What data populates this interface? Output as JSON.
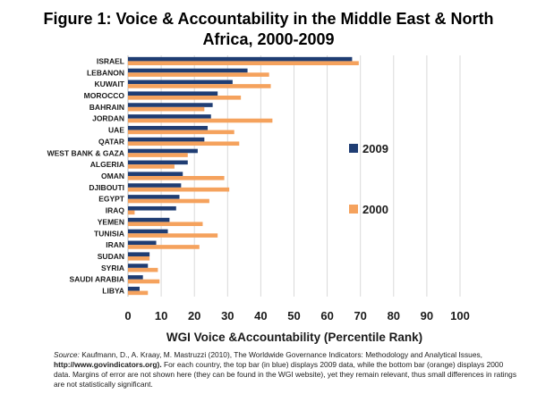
{
  "chart_data": {
    "type": "bar",
    "orientation": "horizontal",
    "title_line1": "Figure 1: Voice & Accountability in the Middle East & North",
    "title_line2": "Africa, 2000-2009",
    "xlabel": "WGI Voice &Accountability (Percentile Rank)",
    "ylabel": "",
    "xlim": [
      0,
      100
    ],
    "xticks": [
      0,
      10,
      20,
      30,
      40,
      50,
      60,
      70,
      80,
      90,
      100
    ],
    "grid": true,
    "legend_position": "right",
    "categories": [
      "ISRAEL",
      "LEBANON",
      "KUWAIT",
      "MOROCCO",
      "BAHRAIN",
      "JORDAN",
      "UAE",
      "QATAR",
      "WEST BANK & GAZA",
      "ALGERIA",
      "OMAN",
      "DJIBOUTI",
      "EGYPT",
      "IRAQ",
      "YEMEN",
      "TUNISIA",
      "IRAN",
      "SUDAN",
      "SYRIA",
      "SAUDI ARABIA",
      "LIBYA"
    ],
    "series": [
      {
        "name": "2009",
        "color": "#1f3d73",
        "values": [
          67.5,
          36,
          31.5,
          27,
          25.5,
          25,
          24,
          23,
          21,
          18,
          16.5,
          16,
          15.5,
          14.5,
          12.5,
          12,
          8.5,
          6.5,
          6,
          4.5,
          3.5
        ]
      },
      {
        "name": "2000",
        "color": "#f5a25d",
        "values": [
          69.5,
          42.5,
          43,
          34,
          23,
          43.5,
          32,
          33.5,
          18,
          14,
          29,
          30.5,
          24.5,
          2,
          22.5,
          27,
          21.5,
          6.5,
          9,
          9.5,
          6
        ]
      }
    ]
  },
  "footnote": {
    "source_label": "Source:",
    "text1": " Kaufmann, D., A. Kraay,  M. Mastruzzi (2010), The Worldwide Governance Indicators: Methodology and Analytical Issues,",
    "url": "http://www.govindicators.org).",
    "text2": "  For each country, the top bar (in blue) displays 2009 data, while the bottom bar (orange) displays 2000 data. Margins of error are not shown here (they can be found in the WGI website), yet they remain relevant, thus small differences in ratings are not statistically significant."
  }
}
